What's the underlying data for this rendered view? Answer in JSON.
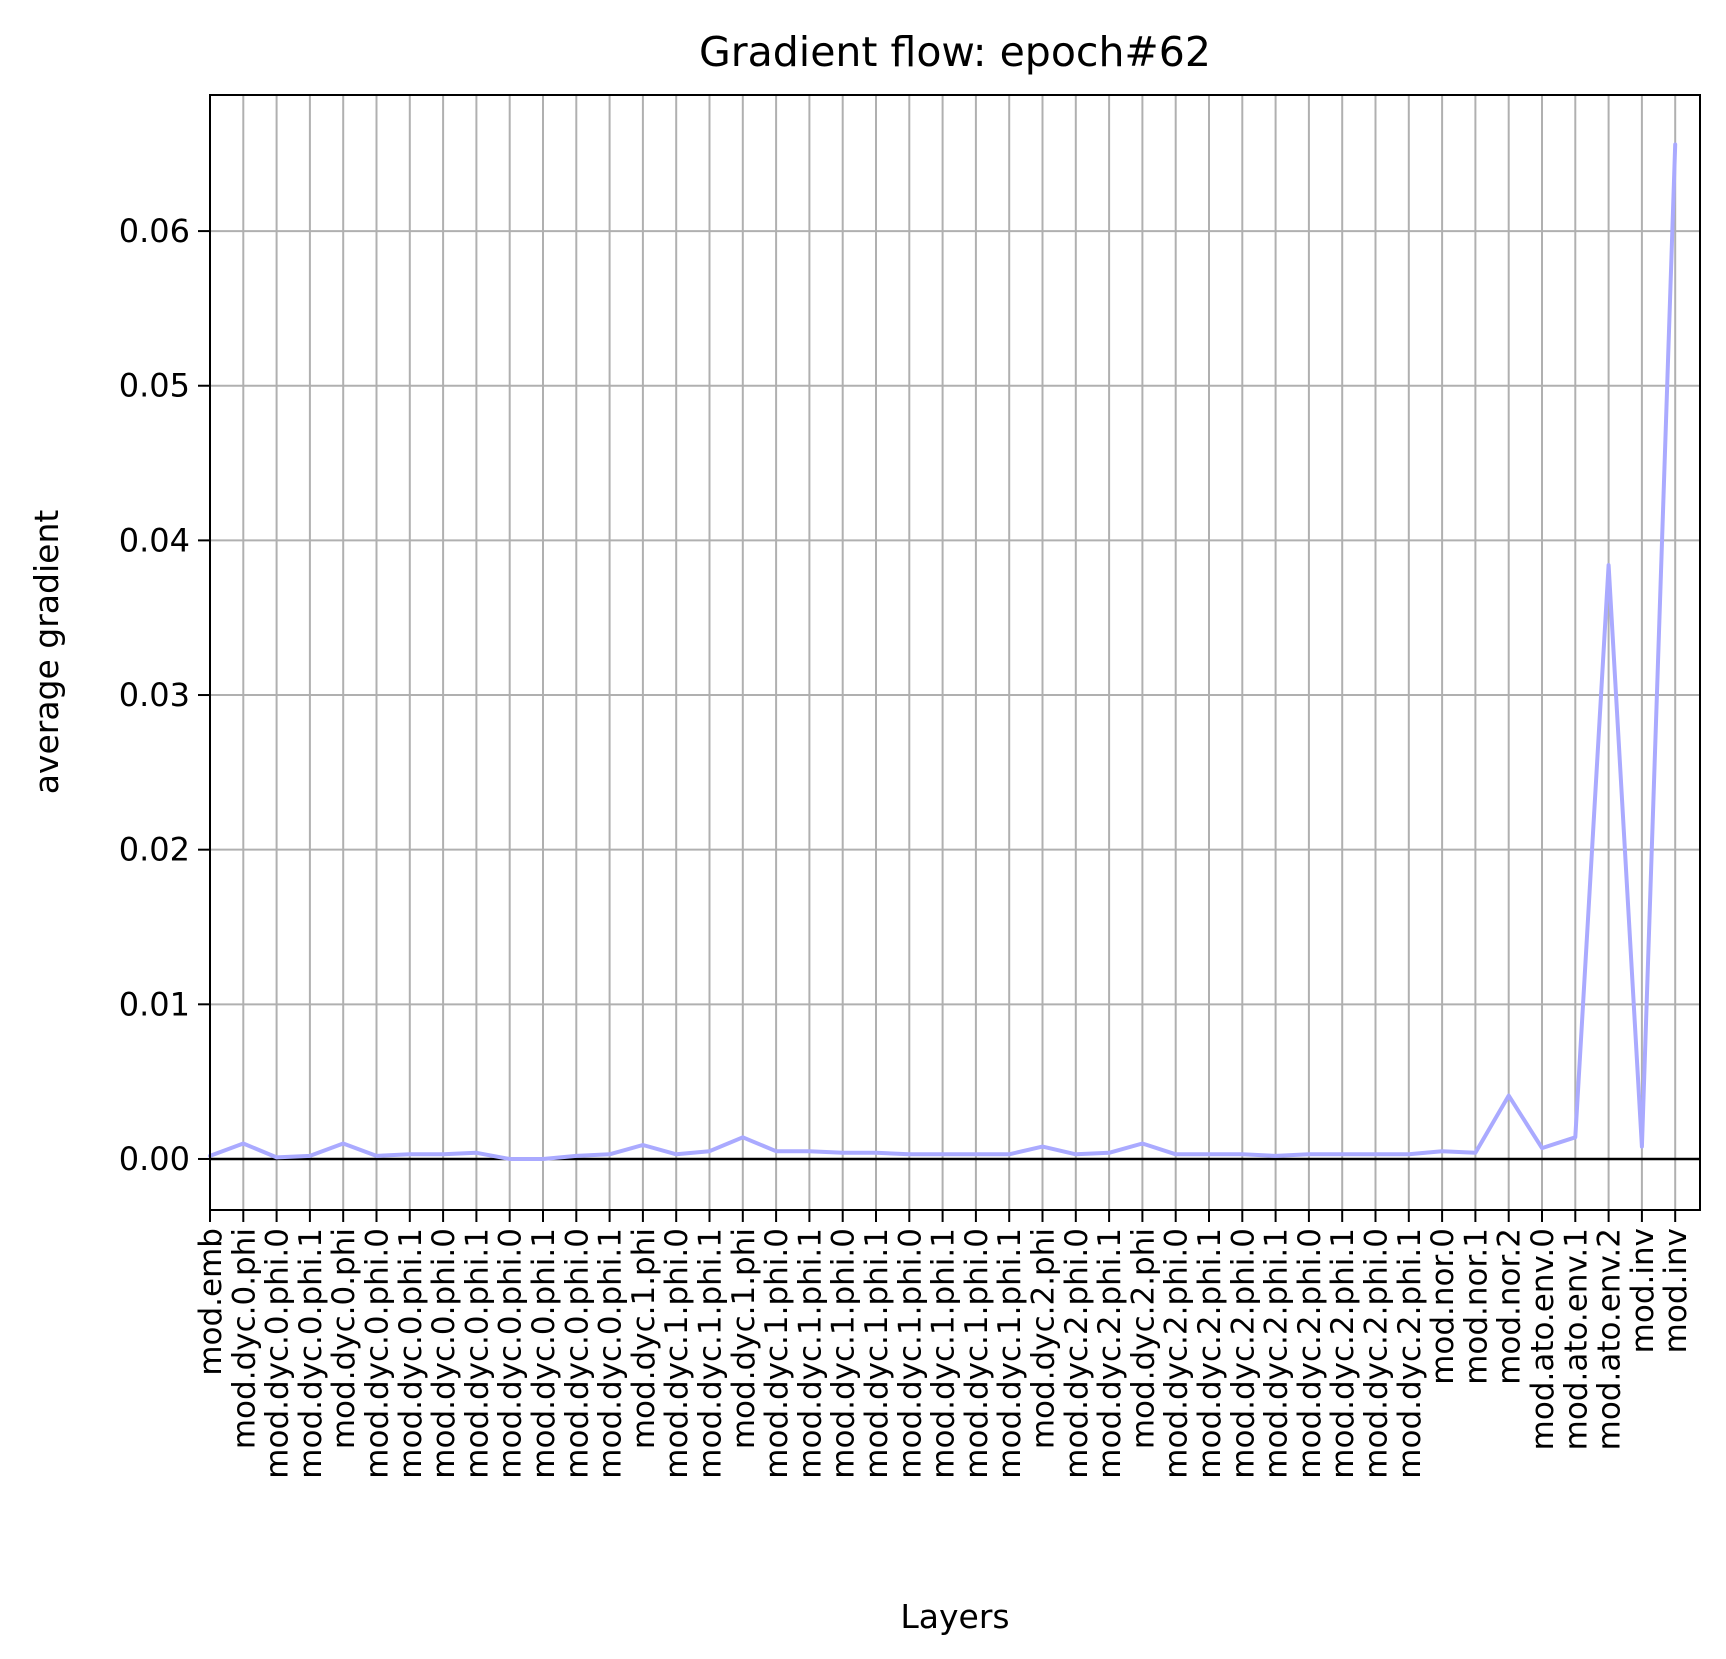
{
  "chart_data": {
    "type": "line",
    "title": "Gradient flow: epoch#62",
    "xlabel": "Layers",
    "ylabel": "average gradient",
    "ylim": [
      -0.0033,
      0.0688
    ],
    "yticks": [
      "0.00",
      "0.01",
      "0.02",
      "0.03",
      "0.04",
      "0.05",
      "0.06"
    ],
    "ytick_values": [
      0.0,
      0.01,
      0.02,
      0.03,
      0.04,
      0.05,
      0.06
    ],
    "grid": true,
    "zero_line": true,
    "line_color": "#aaaaff",
    "categories": [
      "mod.emb",
      "mod.dyc.0.phi",
      "mod.dyc.0.phi.0",
      "mod.dyc.0.phi.1",
      "mod.dyc.0.phi",
      "mod.dyc.0.phi.0",
      "mod.dyc.0.phi.1",
      "mod.dyc.0.phi.0",
      "mod.dyc.0.phi.1",
      "mod.dyc.0.phi.0",
      "mod.dyc.0.phi.1",
      "mod.dyc.0.phi.0",
      "mod.dyc.0.phi.1",
      "mod.dyc.1.phi",
      "mod.dyc.1.phi.0",
      "mod.dyc.1.phi.1",
      "mod.dyc.1.phi",
      "mod.dyc.1.phi.0",
      "mod.dyc.1.phi.1",
      "mod.dyc.1.phi.0",
      "mod.dyc.1.phi.1",
      "mod.dyc.1.phi.0",
      "mod.dyc.1.phi.1",
      "mod.dyc.1.phi.0",
      "mod.dyc.1.phi.1",
      "mod.dyc.2.phi",
      "mod.dyc.2.phi.0",
      "mod.dyc.2.phi.1",
      "mod.dyc.2.phi",
      "mod.dyc.2.phi.0",
      "mod.dyc.2.phi.1",
      "mod.dyc.2.phi.0",
      "mod.dyc.2.phi.1",
      "mod.dyc.2.phi.0",
      "mod.dyc.2.phi.1",
      "mod.dyc.2.phi.0",
      "mod.dyc.2.phi.1",
      "mod.nor.0",
      "mod.nor.1",
      "mod.nor.2",
      "mod.ato.env.0",
      "mod.ato.env.1",
      "mod.ato.env.2",
      "mod.inv",
      "mod.inv"
    ],
    "series": [
      {
        "values": [
          0.0002,
          0.001,
          0.0001,
          0.0002,
          0.001,
          0.0002,
          0.0003,
          0.0003,
          0.0004,
          0.0,
          0.0,
          0.0002,
          0.0003,
          0.0009,
          0.0003,
          0.0005,
          0.0014,
          0.0005,
          0.0005,
          0.0004,
          0.0004,
          0.0003,
          0.0003,
          0.0003,
          0.0003,
          0.0008,
          0.0003,
          0.0004,
          0.001,
          0.0003,
          0.0003,
          0.0003,
          0.0002,
          0.0003,
          0.0003,
          0.0003,
          0.0003,
          0.0005,
          0.0004,
          0.0041,
          0.0007,
          0.0014,
          0.0384,
          0.0008,
          0.0656
        ]
      }
    ]
  }
}
